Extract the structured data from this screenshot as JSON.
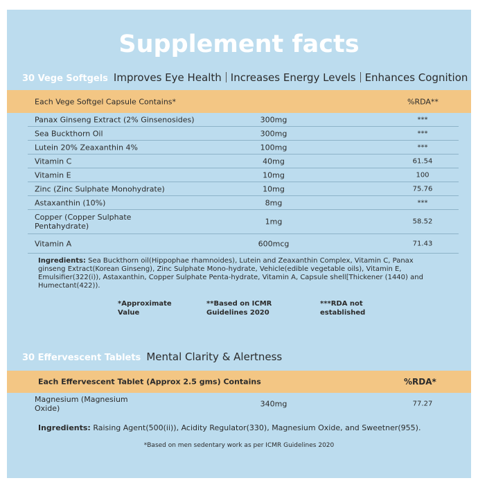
{
  "title": "Supplement facts",
  "softgels": {
    "label": "30 Vege Softgels",
    "benefits": [
      "Improves Eye Health",
      "Increases Energy Levels",
      "Enhances Cognition"
    ],
    "table": {
      "header": [
        "Each Vege Softgel Capsule Contains*",
        "%RDA**"
      ],
      "rows": [
        [
          "Panax Ginseng Extract (2% Ginsenosides)",
          "300mg",
          "***"
        ],
        [
          "Sea Buckthorn Oil",
          "300mg",
          "***"
        ],
        [
          "Lutein 20% Zeaxanthin 4%",
          "100mg",
          "***"
        ],
        [
          "Vitamin C",
          "40mg",
          "61.54"
        ],
        [
          "Vitamin E",
          "10mg",
          "100"
        ],
        [
          "Zinc (Zinc Sulphate Monohydrate)",
          "10mg",
          "75.76"
        ],
        [
          "Astaxanthin (10%)",
          "8mg",
          "***"
        ],
        [
          "Copper (Copper Sulphate Pentahydrate)",
          "1mg",
          "58.52"
        ],
        [
          "Vitamin A",
          "600mcg",
          "71.43"
        ]
      ]
    },
    "ingredients_label": "Ingredients:",
    "ingredients": "Sea Buckthorn oil(Hippophae rhamnoides), Lutein and Zeaxanthin Complex, Vitamin C, Panax ginseng Extract(Korean Ginseng), Zinc Sulphate Mono-hydrate, Vehicle(edible vegetable oils), Vitamin E, Emulsifier(322(i)), Astaxanthin, Copper Sulphate Penta-hydrate, Vitamin A, Capsule shell[Thickener (1440) and Humectant(422)).",
    "footnotes": [
      "*Approximate Value",
      "**Based on ICMR Guidelines 2020",
      "***RDA not established"
    ]
  },
  "tablets": {
    "label": "30 Effervescent Tablets",
    "benefit": "Mental Clarity & Alertness",
    "table": {
      "header": [
        "Each Effervescent Tablet (Approx 2.5 gms) Contains",
        "%RDA*"
      ],
      "rows": [
        [
          "Magnesium (Magnesium Oxide)",
          "340mg",
          "77.27"
        ]
      ]
    },
    "ingredients_label": "Ingredients:",
    "ingredients": "Raising Agent(500(ii)), Acidity Regulator(330), Magnesium Oxide, and Sweetner(955).",
    "footnote": "*Based on men sedentary work as per ICMR Guidelines 2020"
  }
}
